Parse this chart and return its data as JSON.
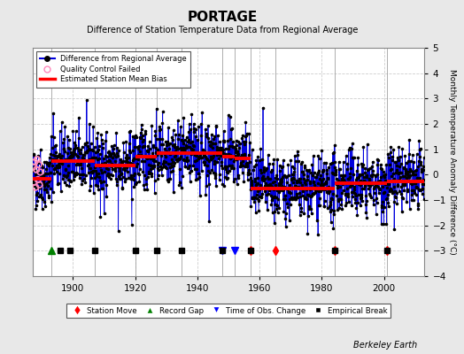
{
  "title": "PORTAGE",
  "subtitle": "Difference of Station Temperature Data from Regional Average",
  "ylabel": "Monthly Temperature Anomaly Difference (°C)",
  "ylim": [
    -4,
    5
  ],
  "xlim": [
    1887,
    2013
  ],
  "background_color": "#e8e8e8",
  "plot_bg_color": "#ffffff",
  "grid_color": "#c8c8c8",
  "data_line_color": "#0000dd",
  "data_marker_color": "#000000",
  "bias_color": "#ff0000",
  "qc_color": "#ff88bb",
  "watermark": "Berkeley Earth",
  "vertical_lines": [
    1893,
    1907,
    1920,
    1927,
    1935,
    1948,
    1952,
    1957,
    1965,
    1984,
    2001
  ],
  "station_moves": [
    1957,
    1965,
    1984,
    2001
  ],
  "record_gaps": [
    1893
  ],
  "obs_changes": [
    1948,
    1952
  ],
  "empirical_breaks": [
    1896,
    1899,
    1907,
    1920,
    1927,
    1935,
    1948,
    1957,
    1984,
    2001
  ],
  "bias_segments": [
    {
      "x": [
        1887,
        1893
      ],
      "y": [
        -0.15,
        -0.15
      ]
    },
    {
      "x": [
        1893,
        1907
      ],
      "y": [
        0.55,
        0.55
      ]
    },
    {
      "x": [
        1907,
        1920
      ],
      "y": [
        0.35,
        0.35
      ]
    },
    {
      "x": [
        1920,
        1927
      ],
      "y": [
        0.7,
        0.7
      ]
    },
    {
      "x": [
        1927,
        1935
      ],
      "y": [
        0.85,
        0.85
      ]
    },
    {
      "x": [
        1935,
        1948
      ],
      "y": [
        0.85,
        0.85
      ]
    },
    {
      "x": [
        1948,
        1952
      ],
      "y": [
        0.7,
        0.7
      ]
    },
    {
      "x": [
        1952,
        1957
      ],
      "y": [
        0.65,
        0.65
      ]
    },
    {
      "x": [
        1957,
        1965
      ],
      "y": [
        -0.55,
        -0.55
      ]
    },
    {
      "x": [
        1965,
        1984
      ],
      "y": [
        -0.55,
        -0.55
      ]
    },
    {
      "x": [
        1984,
        2001
      ],
      "y": [
        -0.35,
        -0.35
      ]
    },
    {
      "x": [
        2001,
        2013
      ],
      "y": [
        -0.25,
        -0.25
      ]
    }
  ],
  "marker_y": -3.0,
  "seed": 42,
  "xticks": [
    1900,
    1920,
    1940,
    1960,
    1980,
    2000
  ],
  "yticks": [
    -4,
    -3,
    -2,
    -1,
    0,
    1,
    2,
    3,
    4,
    5
  ]
}
